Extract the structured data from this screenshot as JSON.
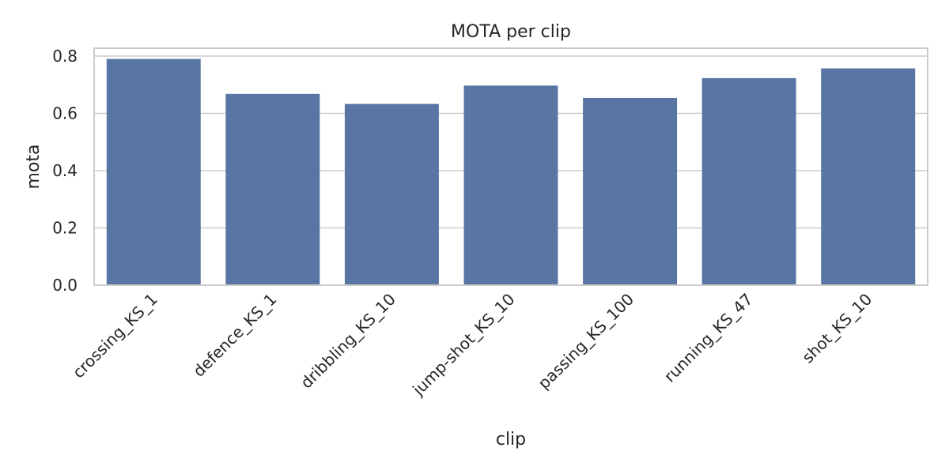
{
  "chart_data": {
    "type": "bar",
    "title": "MOTA per clip",
    "xlabel": "clip",
    "ylabel": "mota",
    "categories": [
      "crossing_KS_1",
      "defence_KS_1",
      "dribbling_KS_10",
      "jump-shot_KS_10",
      "passing_KS_100",
      "running_KS_47",
      "shot_KS_10"
    ],
    "values": [
      0.79,
      0.668,
      0.633,
      0.697,
      0.654,
      0.723,
      0.757
    ],
    "ylim": [
      0,
      0.8
    ],
    "yticks": [
      "0.0",
      "0.2",
      "0.4",
      "0.6",
      "0.8"
    ],
    "grid": true,
    "legend": "none",
    "colors": {
      "bar": "#5975a4",
      "grid": "#cccccc",
      "text": "#262626"
    }
  }
}
